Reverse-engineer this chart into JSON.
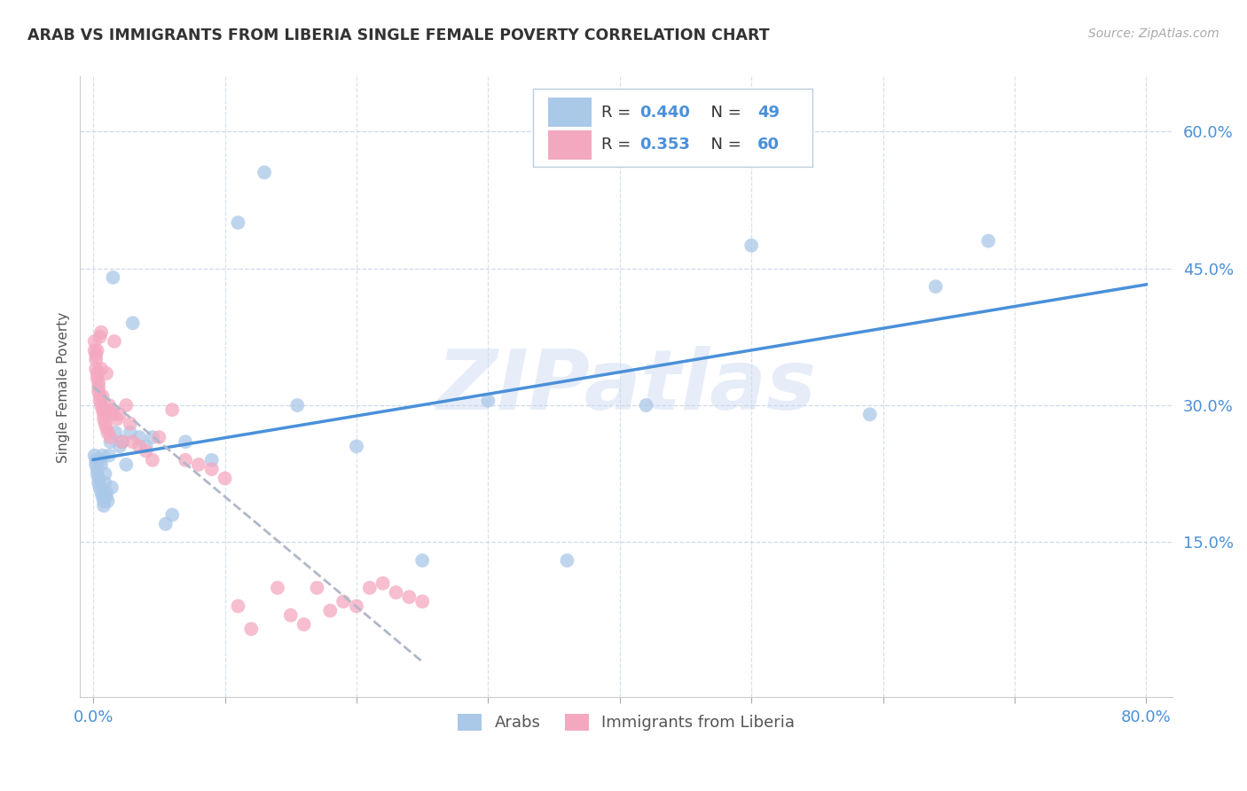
{
  "title": "ARAB VS IMMIGRANTS FROM LIBERIA SINGLE FEMALE POVERTY CORRELATION CHART",
  "source": "Source: ZipAtlas.com",
  "ylabel": "Single Female Poverty",
  "xlim": [
    -0.01,
    0.82
  ],
  "ylim": [
    -0.02,
    0.66
  ],
  "x_ticks": [
    0.0,
    0.1,
    0.2,
    0.3,
    0.4,
    0.5,
    0.6,
    0.7,
    0.8
  ],
  "x_tick_labels": [
    "0.0%",
    "",
    "",
    "",
    "",
    "",
    "",
    "",
    "80.0%"
  ],
  "y_ticks": [
    0.15,
    0.3,
    0.45,
    0.6
  ],
  "y_tick_labels": [
    "15.0%",
    "30.0%",
    "45.0%",
    "60.0%"
  ],
  "watermark": "ZIPatlas",
  "arab_color": "#aac8e8",
  "arab_line_color": "#4a90d9",
  "liberia_color": "#f4a8c0",
  "liberia_line_color": "#e06080",
  "background_color": "#ffffff",
  "grid_color": "#c8d4e8",
  "title_color": "#333333",
  "axis_color": "#4a90d9",
  "arab_x": [
    0.001,
    0.002,
    0.002,
    0.003,
    0.003,
    0.004,
    0.004,
    0.005,
    0.005,
    0.006,
    0.006,
    0.007,
    0.007,
    0.008,
    0.008,
    0.009,
    0.009,
    0.01,
    0.01,
    0.011,
    0.012,
    0.013,
    0.014,
    0.015,
    0.017,
    0.02,
    0.022,
    0.025,
    0.028,
    0.03,
    0.035,
    0.04,
    0.045,
    0.055,
    0.06,
    0.07,
    0.09,
    0.11,
    0.13,
    0.155,
    0.2,
    0.25,
    0.3,
    0.36,
    0.42,
    0.5,
    0.59,
    0.64,
    0.68
  ],
  "arab_y": [
    0.245,
    0.24,
    0.235,
    0.23,
    0.225,
    0.22,
    0.215,
    0.24,
    0.21,
    0.205,
    0.235,
    0.245,
    0.2,
    0.195,
    0.19,
    0.225,
    0.215,
    0.205,
    0.2,
    0.195,
    0.245,
    0.26,
    0.21,
    0.44,
    0.27,
    0.255,
    0.26,
    0.235,
    0.27,
    0.39,
    0.265,
    0.255,
    0.265,
    0.17,
    0.18,
    0.26,
    0.24,
    0.5,
    0.555,
    0.3,
    0.255,
    0.13,
    0.305,
    0.13,
    0.3,
    0.475,
    0.29,
    0.43,
    0.48
  ],
  "liberia_x": [
    0.001,
    0.001,
    0.002,
    0.002,
    0.002,
    0.003,
    0.003,
    0.003,
    0.004,
    0.004,
    0.004,
    0.005,
    0.005,
    0.005,
    0.006,
    0.006,
    0.006,
    0.007,
    0.007,
    0.008,
    0.008,
    0.009,
    0.009,
    0.01,
    0.01,
    0.011,
    0.012,
    0.013,
    0.014,
    0.015,
    0.016,
    0.018,
    0.02,
    0.022,
    0.025,
    0.028,
    0.03,
    0.035,
    0.04,
    0.045,
    0.05,
    0.06,
    0.07,
    0.08,
    0.09,
    0.1,
    0.11,
    0.12,
    0.14,
    0.15,
    0.16,
    0.17,
    0.18,
    0.19,
    0.2,
    0.21,
    0.22,
    0.23,
    0.24,
    0.25
  ],
  "liberia_y": [
    0.37,
    0.36,
    0.355,
    0.35,
    0.34,
    0.335,
    0.33,
    0.36,
    0.325,
    0.32,
    0.315,
    0.375,
    0.31,
    0.305,
    0.34,
    0.3,
    0.38,
    0.295,
    0.31,
    0.29,
    0.285,
    0.295,
    0.28,
    0.275,
    0.335,
    0.27,
    0.3,
    0.265,
    0.295,
    0.29,
    0.37,
    0.285,
    0.29,
    0.26,
    0.3,
    0.28,
    0.26,
    0.255,
    0.25,
    0.24,
    0.265,
    0.295,
    0.24,
    0.235,
    0.23,
    0.22,
    0.08,
    0.055,
    0.1,
    0.07,
    0.06,
    0.1,
    0.075,
    0.085,
    0.08,
    0.1,
    0.105,
    0.095,
    0.09,
    0.085
  ]
}
